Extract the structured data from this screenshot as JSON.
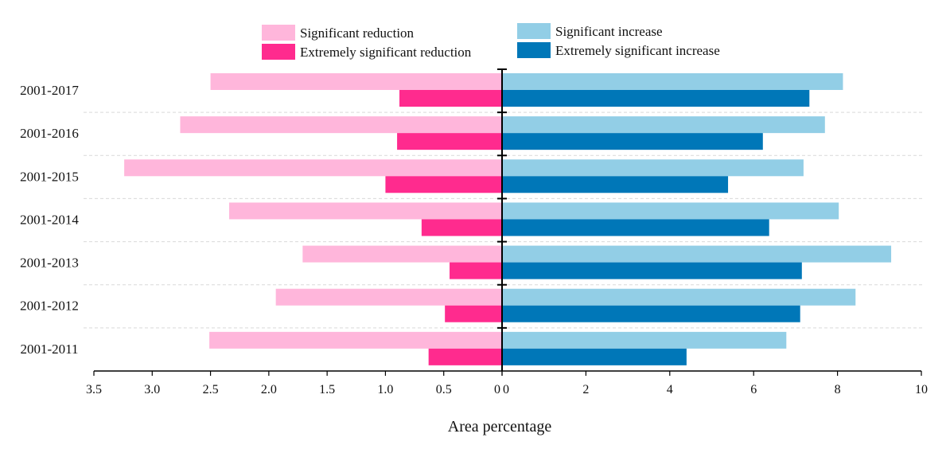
{
  "chart_data": {
    "type": "bar",
    "orientation": "horizontal",
    "layout": "diverging",
    "xlabel": "Area percentage",
    "categories": [
      "2001-2017",
      "2001-2016",
      "2001-2015",
      "2001-2014",
      "2001-2013",
      "2001-2012",
      "2001-2011"
    ],
    "left_axis": {
      "range": [
        0,
        3.5
      ],
      "ticks": [
        3.5,
        3.0,
        2.5,
        2.0,
        1.5,
        1.0,
        0.5,
        0
      ],
      "tick_labels": [
        "3.5",
        "3.0",
        "2.5",
        "2.0",
        "1.5",
        "1.0",
        "0.5",
        "0"
      ]
    },
    "right_axis": {
      "range": [
        0,
        10
      ],
      "ticks": [
        0,
        2,
        4,
        6,
        8,
        10
      ],
      "tick_labels": [
        "0",
        "2",
        "4",
        "6",
        "8",
        "10"
      ]
    },
    "series": [
      {
        "name": "Significant reduction",
        "side": "left",
        "color": "#FFB6DB",
        "values": [
          2.5,
          2.76,
          3.24,
          2.34,
          1.71,
          1.94,
          2.51
        ]
      },
      {
        "name": "Extremely significant reduction",
        "side": "left",
        "color": "#FF2B8E",
        "values": [
          0.88,
          0.9,
          1.0,
          0.69,
          0.45,
          0.49,
          0.63
        ]
      },
      {
        "name": "Significant increase",
        "side": "right",
        "color": "#92CEE6",
        "values": [
          8.13,
          7.7,
          7.19,
          8.03,
          9.28,
          8.43,
          6.78
        ]
      },
      {
        "name": "Extremely significant increase",
        "side": "right",
        "color": "#0077B8",
        "values": [
          7.33,
          6.22,
          5.39,
          6.37,
          7.15,
          7.11,
          4.4
        ]
      }
    ],
    "legend_position": "top",
    "grid": "horizontal dashed separators"
  }
}
